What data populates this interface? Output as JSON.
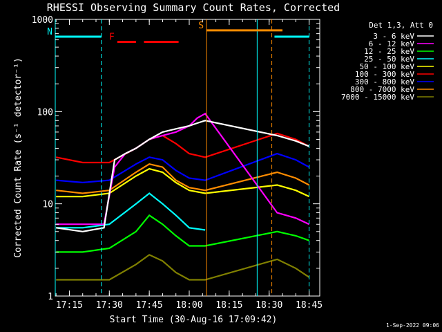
{
  "chart_data": {
    "type": "line",
    "title": "RHESSI Observing Summary Count Rates, Corrected",
    "xlabel": "Start Time (30-Aug-16 17:09:42)",
    "ylabel": "Corrected Count Rate (s⁻¹ detector⁻¹)",
    "yscale": "log",
    "ylim": [
      1,
      1000
    ],
    "xlim": [
      "17:09:42",
      "18:49:00"
    ],
    "y_ticks": [
      "1",
      "10",
      "100",
      "1000"
    ],
    "x_ticks": [
      "17:15",
      "17:30",
      "17:45",
      "18:00",
      "18:15",
      "18:30",
      "18:45"
    ],
    "legend_title": "Det 1,3, Att 0",
    "legend_position": "right",
    "timestamp": "1-Sep-2022 09:06",
    "series": [
      {
        "name": "3 - 6 keV",
        "color": "#ffffff",
        "x": [
          "17:10",
          "17:20",
          "17:28",
          "17:32",
          "17:36",
          "17:40",
          "17:45",
          "17:50",
          "17:55",
          "18:00",
          "18:03",
          "18:06",
          "18:33",
          "18:40",
          "18:45"
        ],
        "values": [
          5.5,
          5,
          5.5,
          30,
          35,
          40,
          50,
          60,
          65,
          70,
          75,
          80,
          55,
          48,
          42
        ]
      },
      {
        "name": "6 - 12 keV",
        "color": "#ff00ff",
        "x": [
          "17:10",
          "17:20",
          "17:28",
          "17:32",
          "17:36",
          "17:40",
          "17:45",
          "17:50",
          "17:55",
          "18:00",
          "18:03",
          "18:06",
          "18:33",
          "18:40",
          "18:45"
        ],
        "values": [
          6,
          6,
          6,
          25,
          35,
          40,
          50,
          55,
          60,
          70,
          85,
          95,
          8,
          7,
          6
        ]
      },
      {
        "name": "12 - 25 keV",
        "color": "#00ff00",
        "x": [
          "17:10",
          "17:20",
          "17:30",
          "17:40",
          "17:45",
          "17:50",
          "17:55",
          "18:00",
          "18:06",
          "18:33",
          "18:40",
          "18:45"
        ],
        "values": [
          3,
          3,
          3.3,
          5,
          7.5,
          6,
          4.5,
          3.5,
          3.5,
          5,
          4.5,
          4
        ]
      },
      {
        "name": "25 - 50 keV",
        "color": "#00ffff",
        "x": [
          "17:10",
          "17:20",
          "17:30",
          "17:40",
          "17:45",
          "17:50",
          "17:55",
          "18:00",
          "18:06",
          "18:33",
          "18:40",
          "18:45"
        ],
        "values": [
          5.5,
          5.5,
          6,
          10,
          13,
          10,
          7.5,
          5.5,
          5.2,
          0,
          0,
          0
        ]
      },
      {
        "name": "50 - 100 keV",
        "color": "#ffff00",
        "x": [
          "17:10",
          "17:20",
          "17:30",
          "17:40",
          "17:45",
          "17:50",
          "17:55",
          "18:00",
          "18:06",
          "18:33",
          "18:40",
          "18:45"
        ],
        "values": [
          12,
          12,
          13,
          20,
          24,
          22,
          17,
          14,
          13,
          16,
          14,
          12
        ]
      },
      {
        "name": "100 - 300 keV",
        "color": "#ff0000",
        "x": [
          "17:10",
          "17:20",
          "17:30",
          "17:40",
          "17:45",
          "17:50",
          "17:55",
          "18:00",
          "18:06",
          "18:33",
          "18:40",
          "18:45"
        ],
        "values": [
          32,
          28,
          28,
          40,
          50,
          55,
          45,
          35,
          32,
          58,
          50,
          42
        ]
      },
      {
        "name": "300 - 800 keV",
        "color": "#0000ff",
        "x": [
          "17:10",
          "17:20",
          "17:30",
          "17:40",
          "17:45",
          "17:50",
          "17:55",
          "18:00",
          "18:06",
          "18:33",
          "18:40",
          "18:45"
        ],
        "values": [
          18,
          17,
          18,
          27,
          32,
          30,
          23,
          19,
          18,
          35,
          30,
          25
        ]
      },
      {
        "name": "800 - 7000 keV",
        "color": "#ff8c00",
        "x": [
          "17:10",
          "17:20",
          "17:30",
          "17:40",
          "17:45",
          "17:50",
          "17:55",
          "18:00",
          "18:06",
          "18:33",
          "18:40",
          "18:45"
        ],
        "values": [
          14,
          13,
          14,
          22,
          27,
          25,
          18,
          15,
          14,
          22,
          19,
          16
        ]
      },
      {
        "name": "7000 - 15000 keV",
        "color": "#808000",
        "x": [
          "17:10",
          "17:20",
          "17:30",
          "17:40",
          "17:45",
          "17:50",
          "17:55",
          "18:00",
          "18:06",
          "18:33",
          "18:40",
          "18:45"
        ],
        "values": [
          1.5,
          1.5,
          1.5,
          2.2,
          2.8,
          2.4,
          1.8,
          1.5,
          1.5,
          2.5,
          2,
          1.6
        ]
      }
    ],
    "flags": [
      {
        "label": "N",
        "color": "#00ffff",
        "y": 650,
        "segments": [
          [
            "17:09:42",
            "17:27:00"
          ],
          [
            "18:32:00",
            "18:45:00"
          ]
        ]
      },
      {
        "label": "F",
        "color": "#ff0000",
        "y": 570,
        "segments": [
          [
            "17:33:00",
            "17:40:00"
          ],
          [
            "17:43:00",
            "17:56:00"
          ]
        ]
      },
      {
        "label": "S",
        "color": "#ff8c00",
        "y": 760,
        "segments": [
          [
            "18:06:30",
            "18:35:00"
          ]
        ]
      }
    ],
    "vlines": [
      {
        "x": "17:09:42",
        "color": "#00ffff",
        "style": "solid"
      },
      {
        "x": "17:27:00",
        "color": "#00ffff",
        "style": "dashed"
      },
      {
        "x": "18:06:30",
        "color": "#ff8c00",
        "style": "solid"
      },
      {
        "x": "18:25:30",
        "color": "#00ffff",
        "style": "solid"
      },
      {
        "x": "18:31:00",
        "color": "#ff8c00",
        "style": "dashed"
      },
      {
        "x": "18:45:00",
        "color": "#00ffff",
        "style": "dashed"
      }
    ]
  }
}
